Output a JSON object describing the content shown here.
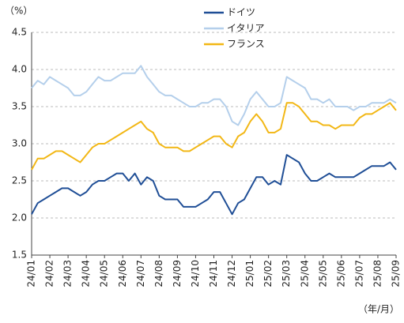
{
  "chart_data": {
    "type": "line",
    "y_unit": "（%）",
    "x_unit": "（年/月）",
    "categories": [
      "24/01",
      null,
      null,
      "24/02",
      null,
      null,
      "24/03",
      null,
      null,
      "24/04",
      null,
      null,
      "24/05",
      null,
      null,
      "24/06",
      null,
      null,
      "24/07",
      null,
      null,
      "24/08",
      null,
      null,
      "24/09",
      null,
      null,
      "24/10",
      null,
      null,
      "24/11",
      null,
      null,
      "24/12",
      null,
      null,
      "25/01",
      null,
      null,
      "25/02",
      null,
      null,
      "25/03",
      null,
      null,
      "25/04",
      null,
      null,
      "25/05",
      null,
      null,
      "25/06",
      null,
      null,
      "25/07",
      null,
      null,
      "25/08",
      null,
      null,
      "25/09"
    ],
    "series": [
      {
        "name": "ドイツ",
        "color": "#1f4e96",
        "values": [
          2.05,
          2.2,
          2.25,
          2.3,
          2.35,
          2.4,
          2.4,
          2.35,
          2.3,
          2.35,
          2.45,
          2.5,
          2.5,
          2.55,
          2.6,
          2.6,
          2.5,
          2.6,
          2.45,
          2.55,
          2.5,
          2.3,
          2.25,
          2.25,
          2.25,
          2.15,
          2.15,
          2.15,
          2.2,
          2.25,
          2.35,
          2.35,
          2.2,
          2.05,
          2.2,
          2.25,
          2.4,
          2.55,
          2.55,
          2.45,
          2.5,
          2.45,
          2.85,
          2.8,
          2.75,
          2.6,
          2.5,
          2.5,
          2.55,
          2.6,
          2.55,
          2.55,
          2.55,
          2.55,
          2.6,
          2.65,
          2.7,
          2.7,
          2.7,
          2.75,
          2.65
        ]
      },
      {
        "name": "イタリア",
        "color": "#b4cfeb",
        "values": [
          3.75,
          3.85,
          3.8,
          3.9,
          3.85,
          3.8,
          3.75,
          3.65,
          3.65,
          3.7,
          3.8,
          3.9,
          3.85,
          3.85,
          3.9,
          3.95,
          3.95,
          3.95,
          4.05,
          3.9,
          3.8,
          3.7,
          3.65,
          3.65,
          3.6,
          3.55,
          3.5,
          3.5,
          3.55,
          3.55,
          3.6,
          3.6,
          3.5,
          3.3,
          3.25,
          3.4,
          3.6,
          3.7,
          3.6,
          3.5,
          3.5,
          3.55,
          3.9,
          3.85,
          3.8,
          3.75,
          3.6,
          3.6,
          3.55,
          3.6,
          3.5,
          3.5,
          3.5,
          3.45,
          3.5,
          3.5,
          3.55,
          3.55,
          3.55,
          3.6,
          3.55
        ]
      },
      {
        "name": "フランス",
        "color": "#f2b715",
        "values": [
          2.65,
          2.8,
          2.8,
          2.85,
          2.9,
          2.9,
          2.85,
          2.8,
          2.75,
          2.85,
          2.95,
          3.0,
          3.0,
          3.05,
          3.1,
          3.15,
          3.2,
          3.25,
          3.3,
          3.2,
          3.15,
          3.0,
          2.95,
          2.95,
          2.95,
          2.9,
          2.9,
          2.95,
          3.0,
          3.05,
          3.1,
          3.1,
          3.0,
          2.95,
          3.1,
          3.15,
          3.3,
          3.4,
          3.3,
          3.15,
          3.15,
          3.2,
          3.55,
          3.55,
          3.5,
          3.4,
          3.3,
          3.3,
          3.25,
          3.25,
          3.2,
          3.25,
          3.25,
          3.25,
          3.35,
          3.4,
          3.4,
          3.45,
          3.5,
          3.55,
          3.45
        ]
      }
    ],
    "ylim": [
      1.5,
      4.5
    ],
    "yticks": [
      1.5,
      {
        "value": 2,
        "label": "2.0"
      },
      2.5,
      {
        "value": 3,
        "label": "3.0"
      },
      3.5,
      {
        "value": 4,
        "label": "4.0"
      },
      4.5
    ],
    "grid": true,
    "legend": "top"
  }
}
